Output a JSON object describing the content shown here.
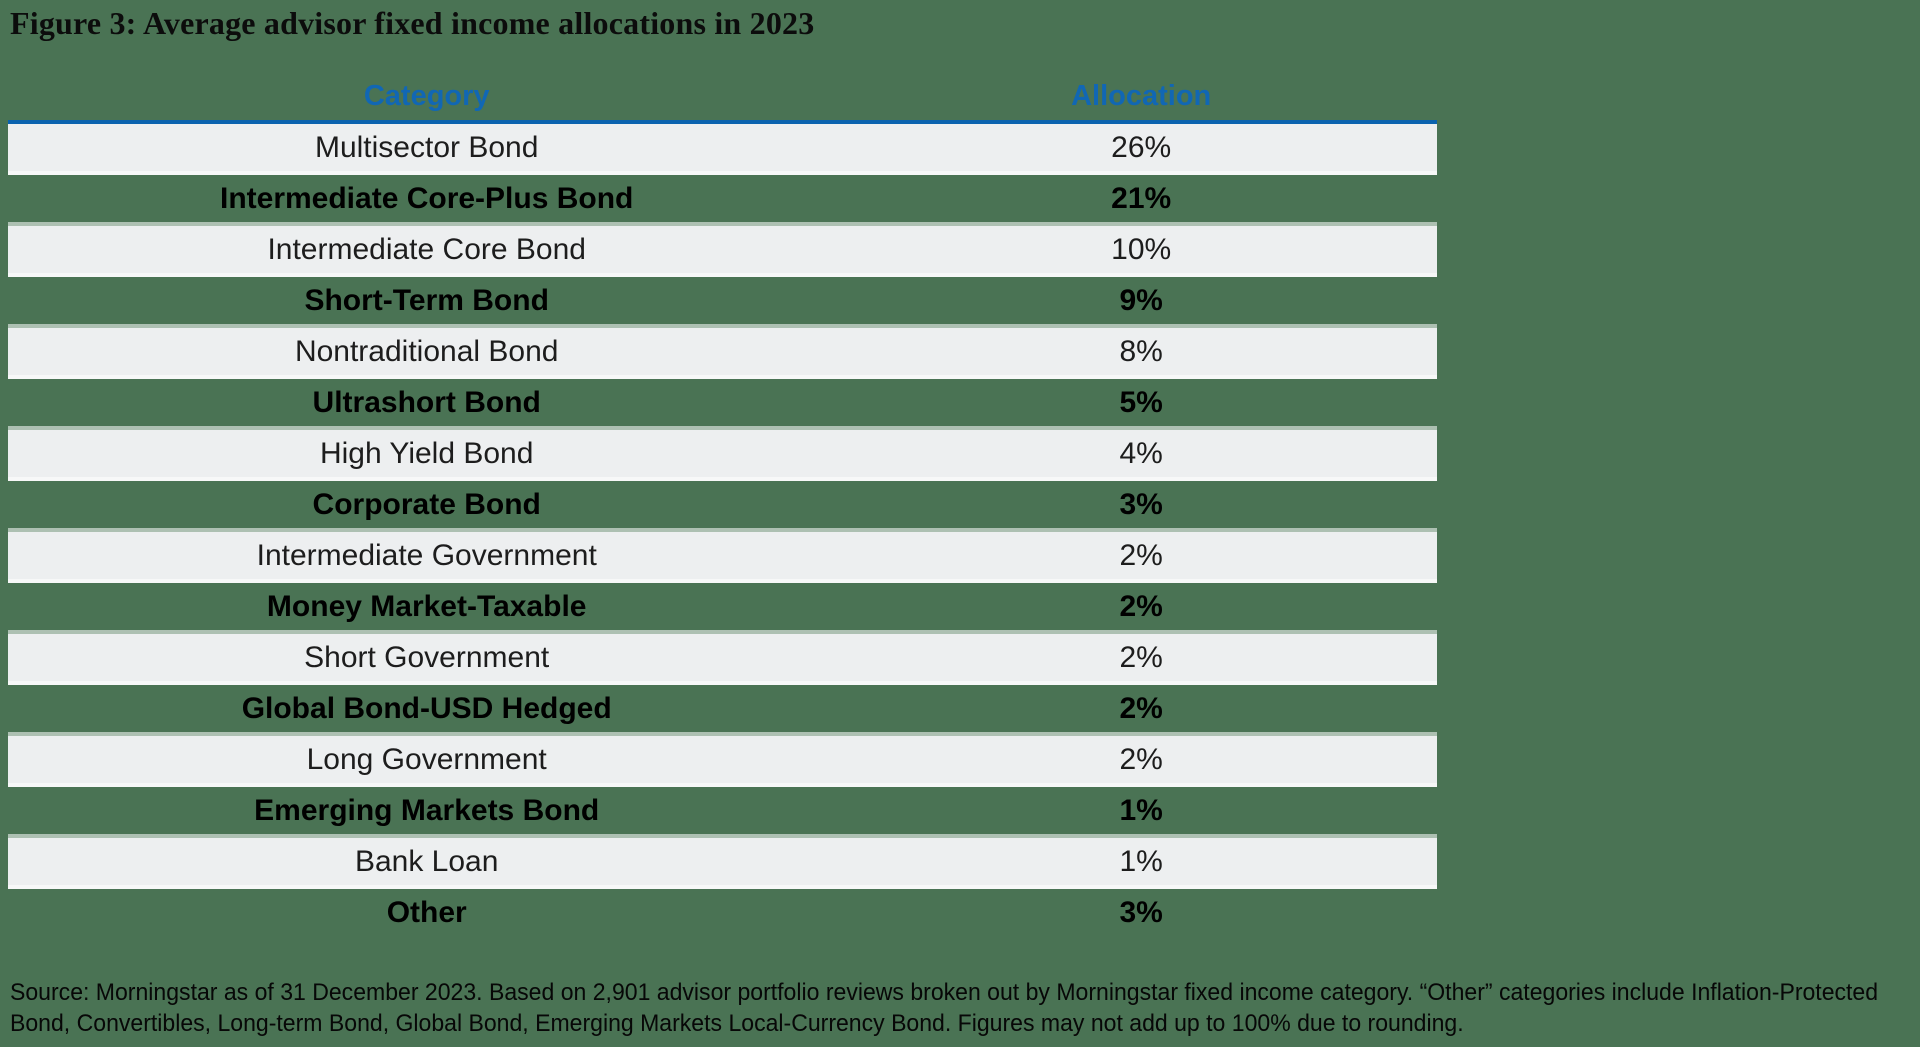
{
  "title": "Figure 3: Average advisor fixed income allocations in 2023",
  "table": {
    "headers": {
      "category": "Category",
      "allocation": "Allocation"
    },
    "rows": [
      {
        "category": "Multisector Bond",
        "allocation": "26%"
      },
      {
        "category": "Intermediate Core-Plus Bond",
        "allocation": "21%"
      },
      {
        "category": "Intermediate Core Bond",
        "allocation": "10%"
      },
      {
        "category": "Short-Term Bond",
        "allocation": "9%"
      },
      {
        "category": "Nontraditional Bond",
        "allocation": "8%"
      },
      {
        "category": "Ultrashort Bond",
        "allocation": "5%"
      },
      {
        "category": "High Yield Bond",
        "allocation": "4%"
      },
      {
        "category": "Corporate Bond",
        "allocation": "3%"
      },
      {
        "category": "Intermediate Government",
        "allocation": "2%"
      },
      {
        "category": "Money Market-Taxable",
        "allocation": "2%"
      },
      {
        "category": "Short Government",
        "allocation": "2%"
      },
      {
        "category": "Global Bond-USD Hedged",
        "allocation": "2%"
      },
      {
        "category": "Long Government",
        "allocation": "2%"
      },
      {
        "category": "Emerging Markets Bond",
        "allocation": "1%"
      },
      {
        "category": "Bank Loan",
        "allocation": "1%"
      },
      {
        "category": "Other",
        "allocation": "3%"
      }
    ]
  },
  "source": {
    "lines": [
      "Source: Morningstar as of 31 December 2023. Based on 2,901 advisor portfolio reviews broken out by Morningstar fixed income category. “Other” categories include Inflation-Protected",
      "Bond, Convertibles, Long-term Bond, Global Bond, Emerging Markets Local-Currency Bond. Figures may not add up to 100% due to rounding."
    ]
  },
  "colors": {
    "background": "#4a7354",
    "row_stripe": "#edeff0",
    "header_text": "#1167b4",
    "divider": "#0b63af"
  },
  "chart_data": {
    "type": "table",
    "title": "Figure 3: Average advisor fixed income allocations in 2023",
    "columns": [
      "Category",
      "Allocation"
    ],
    "categories": [
      "Multisector Bond",
      "Intermediate Core-Plus Bond",
      "Intermediate Core Bond",
      "Short-Term Bond",
      "Nontraditional Bond",
      "Ultrashort Bond",
      "High Yield Bond",
      "Corporate Bond",
      "Intermediate Government",
      "Money Market-Taxable",
      "Short Government",
      "Global Bond-USD Hedged",
      "Long Government",
      "Emerging Markets Bond",
      "Bank Loan",
      "Other"
    ],
    "values_percent": [
      26,
      21,
      10,
      9,
      8,
      5,
      4,
      3,
      2,
      2,
      2,
      2,
      2,
      1,
      1,
      3
    ],
    "source_note": "Source: Morningstar as of 31 December 2023. Based on 2,901 advisor portfolio reviews broken out by Morningstar fixed income category. “Other” categories include Inflation-Protected Bond, Convertibles, Long-term Bond, Global Bond, Emerging Markets Local-Currency Bond. Figures may not add up to 100% due to rounding."
  }
}
